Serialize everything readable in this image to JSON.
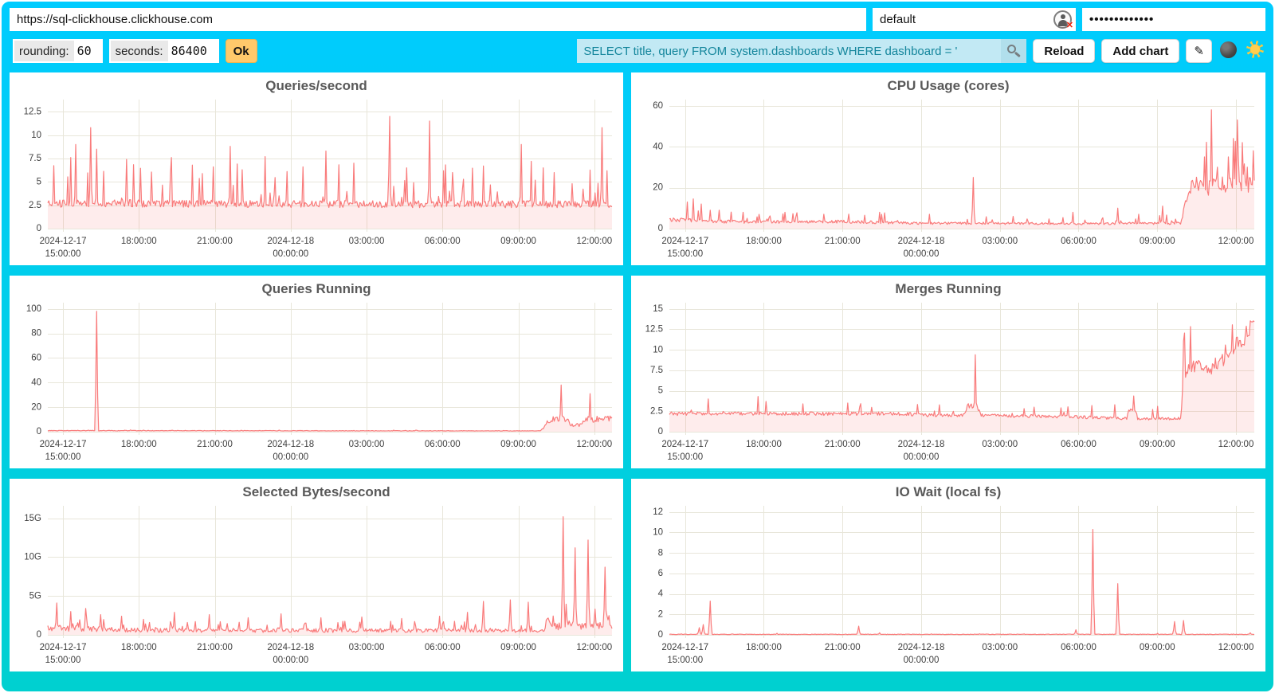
{
  "connection": {
    "url": "https://sql-clickhouse.clickhouse.com",
    "user": "default",
    "password_masked": "•••••••••••••",
    "user_status_badge": "✕"
  },
  "params": {
    "rounding_label": "rounding:",
    "rounding_value": "60",
    "seconds_label": "seconds:",
    "seconds_value": "86400",
    "ok_label": "Ok"
  },
  "toolbar": {
    "search_query": "SELECT title, query FROM system.dashboards WHERE dashboard = '",
    "reload_label": "Reload",
    "add_chart_label": "Add chart",
    "edit_glyph": "✎"
  },
  "colors": {
    "background_top": "#00CCFF",
    "background_bottom": "#00D0D0",
    "line": "#F97B7B",
    "fill": "rgba(247,112,112,0.13)",
    "grid": "#e8e6da",
    "axis_text": "#3f3f3f",
    "accent_button": "#FFC96B",
    "search_bg": "#c2e9f4",
    "search_text": "#14869c"
  },
  "x_axis": {
    "start_h": 14.4,
    "end_h": 36.7,
    "ticks": [
      {
        "h": 15,
        "lines": [
          "2024-12-17",
          "15:00:00"
        ]
      },
      {
        "h": 18,
        "lines": [
          "18:00:00"
        ]
      },
      {
        "h": 21,
        "lines": [
          "21:00:00"
        ]
      },
      {
        "h": 24,
        "lines": [
          "2024-12-18",
          "00:00:00"
        ]
      },
      {
        "h": 27,
        "lines": [
          "03:00:00"
        ]
      },
      {
        "h": 30,
        "lines": [
          "06:00:00"
        ]
      },
      {
        "h": 33,
        "lines": [
          "09:00:00"
        ]
      },
      {
        "h": 36,
        "lines": [
          "12:00:00"
        ]
      }
    ]
  },
  "chart_data": [
    {
      "type": "area",
      "title": "Queries/second",
      "y_max": 13.8,
      "y_ticks": [
        {
          "v": 0,
          "label": "0"
        },
        {
          "v": 2.5,
          "label": "2.5"
        },
        {
          "v": 5,
          "label": "5"
        },
        {
          "v": 7.5,
          "label": "7.5"
        },
        {
          "v": 10,
          "label": "10"
        },
        {
          "v": 12.5,
          "label": "12.5"
        }
      ],
      "baseline": [
        [
          14.4,
          2.7
        ],
        [
          36.7,
          2.6
        ]
      ],
      "noise": {
        "amp": 0.15,
        "spike_prob": 0.1,
        "spike_mult": 2.6
      },
      "spikes": [
        [
          15.3,
          7.6
        ],
        [
          15.5,
          9.0
        ],
        [
          16.1,
          10.8
        ],
        [
          16.35,
          8.5
        ],
        [
          17.5,
          7.4
        ],
        [
          19.3,
          7.6
        ],
        [
          20.1,
          6.8
        ],
        [
          21.6,
          8.8
        ],
        [
          22.1,
          6.3
        ],
        [
          23.0,
          7.7
        ],
        [
          24.5,
          6.6
        ],
        [
          25.4,
          8.3
        ],
        [
          26.5,
          7.0
        ],
        [
          27.9,
          12.0
        ],
        [
          28.6,
          6.5
        ],
        [
          29.5,
          11.5
        ],
        [
          30.4,
          6.0
        ],
        [
          31.6,
          6.7
        ],
        [
          33.1,
          9.0
        ],
        [
          33.5,
          7.2
        ],
        [
          34.0,
          6.5
        ],
        [
          34.4,
          6.0
        ],
        [
          36.3,
          10.8
        ]
      ]
    },
    {
      "type": "area",
      "title": "CPU Usage (cores)",
      "y_max": 63,
      "y_ticks": [
        {
          "v": 0,
          "label": "0"
        },
        {
          "v": 20,
          "label": "20"
        },
        {
          "v": 40,
          "label": "40"
        },
        {
          "v": 60,
          "label": "60"
        }
      ],
      "baseline": [
        [
          14.4,
          4.5
        ],
        [
          16,
          3.5
        ],
        [
          18,
          3.2
        ],
        [
          21,
          3.4
        ],
        [
          24,
          2.6
        ],
        [
          27,
          2.6
        ],
        [
          30,
          2.4
        ],
        [
          33.9,
          2.6
        ],
        [
          34.05,
          12
        ],
        [
          34.15,
          19
        ],
        [
          34.5,
          21
        ],
        [
          34.9,
          20
        ],
        [
          35.2,
          22
        ],
        [
          35.6,
          21
        ],
        [
          36.0,
          22
        ],
        [
          36.35,
          23
        ],
        [
          36.55,
          22
        ],
        [
          36.7,
          26
        ]
      ],
      "noise": {
        "amp": 0.22,
        "spike_prob": 0.09,
        "spike_mult": 2.6
      },
      "spikes": [
        [
          15.1,
          13
        ],
        [
          15.3,
          14.5
        ],
        [
          15.6,
          12
        ],
        [
          16.3,
          9
        ],
        [
          17.2,
          8
        ],
        [
          18.8,
          8
        ],
        [
          20.3,
          7
        ],
        [
          22.4,
          8
        ],
        [
          24.3,
          7
        ],
        [
          26.0,
          25
        ],
        [
          27.5,
          6
        ],
        [
          29.8,
          8
        ],
        [
          31.5,
          10
        ],
        [
          32.3,
          7
        ],
        [
          33.2,
          11
        ],
        [
          34.8,
          35
        ],
        [
          35.05,
          58
        ],
        [
          35.3,
          30
        ],
        [
          35.7,
          35
        ],
        [
          35.9,
          44
        ],
        [
          36.1,
          35
        ],
        [
          36.25,
          42
        ],
        [
          36.45,
          30
        ],
        [
          36.65,
          38
        ]
      ]
    },
    {
      "type": "area",
      "title": "Queries Running",
      "y_max": 105,
      "y_ticks": [
        {
          "v": 0,
          "label": "0"
        },
        {
          "v": 20,
          "label": "20"
        },
        {
          "v": 40,
          "label": "40"
        },
        {
          "v": 60,
          "label": "60"
        },
        {
          "v": 80,
          "label": "80"
        },
        {
          "v": 100,
          "label": "100"
        }
      ],
      "baseline": [
        [
          14.4,
          0.9
        ],
        [
          33.85,
          0.7
        ],
        [
          34.0,
          3
        ],
        [
          34.15,
          9.5
        ],
        [
          34.4,
          10
        ],
        [
          34.75,
          11
        ],
        [
          34.95,
          10
        ],
        [
          35.05,
          5.5
        ],
        [
          35.45,
          5.5
        ],
        [
          35.55,
          10
        ],
        [
          35.9,
          10
        ],
        [
          36.15,
          10.5
        ],
        [
          36.45,
          11
        ],
        [
          36.7,
          10
        ]
      ],
      "noise": {
        "amp": 0.25,
        "spike_prob": 0.05,
        "spike_mult": 1.8
      },
      "spikes": [
        [
          16.35,
          98
        ],
        [
          34.7,
          38
        ],
        [
          35.85,
          31
        ]
      ]
    },
    {
      "type": "area",
      "title": "Merges Running",
      "y_max": 15.75,
      "y_ticks": [
        {
          "v": 0,
          "label": "0"
        },
        {
          "v": 2.5,
          "label": "2.5"
        },
        {
          "v": 5,
          "label": "5"
        },
        {
          "v": 7.5,
          "label": "7.5"
        },
        {
          "v": 10,
          "label": "10"
        },
        {
          "v": 12.5,
          "label": "12.5"
        },
        {
          "v": 15,
          "label": "15"
        }
      ],
      "baseline": [
        [
          14.4,
          2.2
        ],
        [
          23.5,
          2.2
        ],
        [
          24,
          2.0
        ],
        [
          25.6,
          2.0
        ],
        [
          25.8,
          3.2
        ],
        [
          26.1,
          3.2
        ],
        [
          26.3,
          2.0
        ],
        [
          30,
          1.8
        ],
        [
          31.85,
          1.6
        ],
        [
          31.9,
          2.7
        ],
        [
          32.2,
          2.7
        ],
        [
          32.25,
          1.6
        ],
        [
          33.9,
          1.6
        ],
        [
          34.0,
          7.0
        ],
        [
          34.2,
          7.8
        ],
        [
          34.6,
          8.2
        ],
        [
          34.9,
          7.6
        ],
        [
          35.3,
          8.0
        ],
        [
          35.6,
          8.6
        ],
        [
          35.9,
          10.3
        ],
        [
          36.1,
          10.8
        ],
        [
          36.3,
          11.5
        ],
        [
          36.5,
          12.3
        ],
        [
          36.7,
          12.7
        ]
      ],
      "noise": {
        "amp": 0.1,
        "spike_prob": 0.05,
        "spike_mult": 1.7
      },
      "spikes": [
        [
          15.9,
          4.0
        ],
        [
          17.8,
          4.3
        ],
        [
          18.1,
          3.7
        ],
        [
          19.5,
          3.4
        ],
        [
          21.2,
          3.5
        ],
        [
          26.05,
          9.4
        ],
        [
          28.3,
          3.0
        ],
        [
          30.5,
          3.2
        ],
        [
          31.4,
          3.3
        ],
        [
          33.0,
          3.1
        ],
        [
          35.2,
          9.0
        ],
        [
          36.0,
          11.5
        ]
      ]
    },
    {
      "type": "area",
      "title": "Selected Bytes/second",
      "y_max": 16.6,
      "y_unit": "G",
      "y_ticks": [
        {
          "v": 0,
          "label": "0"
        },
        {
          "v": 5,
          "label": "5G"
        },
        {
          "v": 10,
          "label": "10G"
        },
        {
          "v": 15,
          "label": "15G"
        }
      ],
      "baseline": [
        [
          14.4,
          0.9
        ],
        [
          16,
          0.8
        ],
        [
          18,
          0.6
        ],
        [
          24,
          0.55
        ],
        [
          34,
          0.55
        ],
        [
          34.15,
          2.0
        ],
        [
          34.3,
          1.2
        ],
        [
          34.6,
          1.1
        ],
        [
          35.0,
          1.4
        ],
        [
          35.4,
          1.0
        ],
        [
          35.9,
          1.3
        ],
        [
          36.3,
          1.1
        ],
        [
          36.45,
          3.2
        ],
        [
          36.55,
          2.0
        ],
        [
          36.7,
          1.1
        ]
      ],
      "noise": {
        "amp": 0.45,
        "spike_prob": 0.14,
        "spike_mult": 3.2
      },
      "spikes": [
        [
          14.75,
          4.1
        ],
        [
          15.3,
          3.0
        ],
        [
          15.9,
          3.4
        ],
        [
          16.5,
          2.6
        ],
        [
          17.3,
          2.4
        ],
        [
          18.2,
          2.0
        ],
        [
          19.4,
          2.9
        ],
        [
          20.8,
          2.6
        ],
        [
          22.3,
          2.2
        ],
        [
          23.6,
          2.7
        ],
        [
          25.2,
          2.2
        ],
        [
          26.8,
          2.3
        ],
        [
          28.4,
          2.1
        ],
        [
          29.9,
          2.4
        ],
        [
          31.0,
          2.9
        ],
        [
          31.6,
          4.3
        ],
        [
          32.7,
          4.5
        ],
        [
          33.4,
          4.2
        ],
        [
          34.75,
          15.2
        ],
        [
          35.25,
          11.2
        ],
        [
          35.75,
          12.2
        ]
      ]
    },
    {
      "type": "area",
      "title": "IO Wait (local fs)",
      "y_max": 12.6,
      "y_ticks": [
        {
          "v": 0,
          "label": "0"
        },
        {
          "v": 2,
          "label": "2"
        },
        {
          "v": 4,
          "label": "4"
        },
        {
          "v": 6,
          "label": "6"
        },
        {
          "v": 8,
          "label": "8"
        },
        {
          "v": 10,
          "label": "10"
        },
        {
          "v": 12,
          "label": "12"
        }
      ],
      "baseline": [
        [
          14.4,
          0.05
        ],
        [
          36.7,
          0.05
        ]
      ],
      "noise": {
        "amp": 0.5,
        "spike_prob": 0.02,
        "spike_mult": 2.0
      },
      "spikes": [
        [
          15.55,
          0.7
        ],
        [
          15.7,
          1.0
        ],
        [
          15.95,
          3.3
        ],
        [
          18.5,
          0.15
        ],
        [
          21.6,
          0.85
        ],
        [
          22.4,
          0.2
        ],
        [
          26.2,
          0.1
        ],
        [
          29.9,
          0.5
        ],
        [
          30.55,
          10.3
        ],
        [
          31.5,
          5.0
        ],
        [
          33.0,
          0.15
        ],
        [
          33.65,
          1.3
        ],
        [
          34.0,
          1.4
        ],
        [
          36.55,
          0.2
        ]
      ]
    }
  ]
}
